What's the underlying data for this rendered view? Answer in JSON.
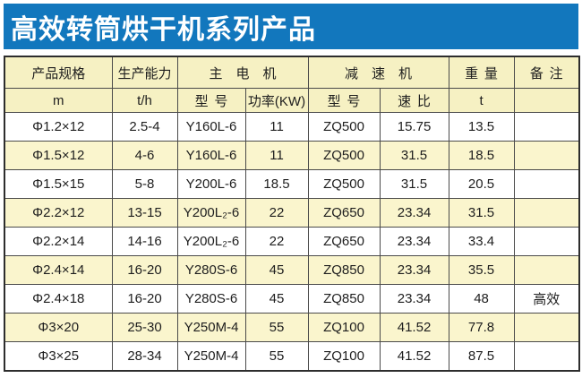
{
  "title": "高效转筒烘干机系列产品",
  "colors": {
    "title_bg": "#1277BD",
    "title_text": "#FFFFFF",
    "header_bg": "#F6F1C3",
    "row_bg": "#FFFFFF",
    "row_alt_bg": "#FAF5CD",
    "border": "#4A4A4A",
    "text": "#1E1E1E"
  },
  "table": {
    "header_row1": [
      {
        "label": "产品规格",
        "colspan": 1
      },
      {
        "label": "生产能力",
        "colspan": 1
      },
      {
        "label": "主电机",
        "colspan": 2
      },
      {
        "label": "减速机",
        "colspan": 2
      },
      {
        "label": "重量",
        "colspan": 1
      },
      {
        "label": "备注",
        "colspan": 1
      }
    ],
    "header_row2": [
      "m",
      "t/h",
      "型号",
      "功率(KW)",
      "型号",
      "速比",
      "t",
      ""
    ],
    "columns": [
      "spec",
      "capacity",
      "motor-model",
      "motor-power",
      "reducer-model",
      "reducer-ratio",
      "weight",
      "remark"
    ],
    "rows": [
      [
        "Φ1.2×12",
        "2.5-4",
        "Y160L-6",
        "11",
        "ZQ500",
        "15.75",
        "13.5",
        ""
      ],
      [
        "Φ1.5×12",
        "4-6",
        "Y160L-6",
        "11",
        "ZQ500",
        "31.5",
        "18.5",
        ""
      ],
      [
        "Φ1.5×15",
        "5-8",
        "Y200L-6",
        "18.5",
        "ZQ500",
        "31.5",
        "20.5",
        ""
      ],
      [
        "Φ2.2×12",
        "13-15",
        "Y200L₂-6",
        "22",
        "ZQ650",
        "23.34",
        "31.5",
        ""
      ],
      [
        "Φ2.2×14",
        "14-16",
        "Y200L₂-6",
        "22",
        "ZQ650",
        "23.34",
        "33.4",
        ""
      ],
      [
        "Φ2.4×14",
        "16-20",
        "Y280S-6",
        "45",
        "ZQ850",
        "23.34",
        "35.5",
        ""
      ],
      [
        "Φ2.4×18",
        "16-20",
        "Y280S-6",
        "45",
        "ZQ850",
        "23.34",
        "48",
        "高效"
      ],
      [
        "Φ3×20",
        "25-30",
        "Y250M-4",
        "55",
        "ZQ100",
        "41.52",
        "77.8",
        ""
      ],
      [
        "Φ3×25",
        "28-34",
        "Y250M-4",
        "55",
        "ZQ100",
        "41.52",
        "87.5",
        ""
      ]
    ]
  }
}
